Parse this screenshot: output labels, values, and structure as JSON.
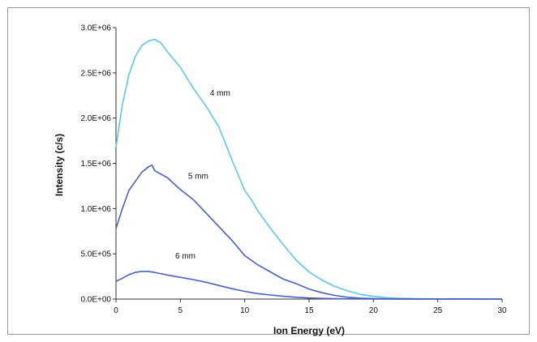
{
  "chart_data": {
    "type": "line",
    "title": "",
    "xlabel": "Ion Energy (eV)",
    "ylabel": "Intensity (c/s)",
    "xlim": [
      0,
      30
    ],
    "ylim": [
      0,
      3000000
    ],
    "x_ticks": [
      "0",
      "5",
      "10",
      "15",
      "20",
      "25",
      "30"
    ],
    "y_ticks": [
      "0.0E+00",
      "5.0E+05",
      "1.0E+06",
      "1.5E+06",
      "2.0E+06",
      "2.5E+06",
      "3.0E+06"
    ],
    "grid": false,
    "legend": "none",
    "series": [
      {
        "name": "4 mm",
        "color": "#5ec6ea",
        "points": [
          [
            0,
            1680000
          ],
          [
            0.5,
            2150000
          ],
          [
            1,
            2480000
          ],
          [
            1.5,
            2680000
          ],
          [
            2,
            2800000
          ],
          [
            2.5,
            2850000
          ],
          [
            3,
            2870000
          ],
          [
            3.5,
            2830000
          ],
          [
            4,
            2730000
          ],
          [
            5,
            2560000
          ],
          [
            6,
            2330000
          ],
          [
            7,
            2130000
          ],
          [
            8,
            1900000
          ],
          [
            9,
            1540000
          ],
          [
            10,
            1200000
          ],
          [
            10.5,
            1100000
          ],
          [
            11,
            980000
          ],
          [
            12,
            780000
          ],
          [
            13,
            600000
          ],
          [
            14,
            430000
          ],
          [
            15,
            300000
          ],
          [
            16,
            210000
          ],
          [
            17,
            140000
          ],
          [
            18,
            90000
          ],
          [
            19,
            50000
          ],
          [
            20,
            30000
          ],
          [
            21,
            15000
          ],
          [
            22,
            8000
          ],
          [
            24,
            3000
          ],
          [
            26,
            1000
          ],
          [
            30,
            0
          ]
        ]
      },
      {
        "name": "5 mm",
        "color": "#4a5fc0",
        "points": [
          [
            0,
            780000
          ],
          [
            0.5,
            1000000
          ],
          [
            1,
            1200000
          ],
          [
            1.5,
            1300000
          ],
          [
            2,
            1400000
          ],
          [
            2.5,
            1460000
          ],
          [
            2.8,
            1480000
          ],
          [
            3,
            1420000
          ],
          [
            3.5,
            1380000
          ],
          [
            4,
            1340000
          ],
          [
            5,
            1210000
          ],
          [
            6,
            1100000
          ],
          [
            7,
            950000
          ],
          [
            8,
            800000
          ],
          [
            9,
            650000
          ],
          [
            10,
            480000
          ],
          [
            11,
            380000
          ],
          [
            12,
            300000
          ],
          [
            13,
            220000
          ],
          [
            14,
            170000
          ],
          [
            15,
            110000
          ],
          [
            16,
            70000
          ],
          [
            17,
            40000
          ],
          [
            18,
            20000
          ],
          [
            19,
            10000
          ],
          [
            20,
            5000
          ],
          [
            22,
            1000
          ],
          [
            30,
            0
          ]
        ]
      },
      {
        "name": "6 mm",
        "color": "#4a5fc0",
        "points": [
          [
            0,
            195000
          ],
          [
            0.5,
            230000
          ],
          [
            1,
            270000
          ],
          [
            1.5,
            295000
          ],
          [
            2,
            305000
          ],
          [
            2.5,
            305000
          ],
          [
            3,
            295000
          ],
          [
            4,
            265000
          ],
          [
            5,
            240000
          ],
          [
            6,
            215000
          ],
          [
            7,
            185000
          ],
          [
            8,
            150000
          ],
          [
            9,
            115000
          ],
          [
            10,
            85000
          ],
          [
            11,
            60000
          ],
          [
            12,
            45000
          ],
          [
            13,
            30000
          ],
          [
            14,
            20000
          ],
          [
            15,
            12000
          ],
          [
            16,
            7000
          ],
          [
            17,
            4000
          ],
          [
            18,
            2000
          ],
          [
            20,
            500
          ],
          [
            30,
            0
          ]
        ]
      }
    ],
    "annotations": [
      {
        "text": "4 mm",
        "x": 7.3,
        "y": 2250000
      },
      {
        "text": "5 mm",
        "x": 5.6,
        "y": 1330000
      },
      {
        "text": "6 mm",
        "x": 4.6,
        "y": 450000
      }
    ]
  }
}
